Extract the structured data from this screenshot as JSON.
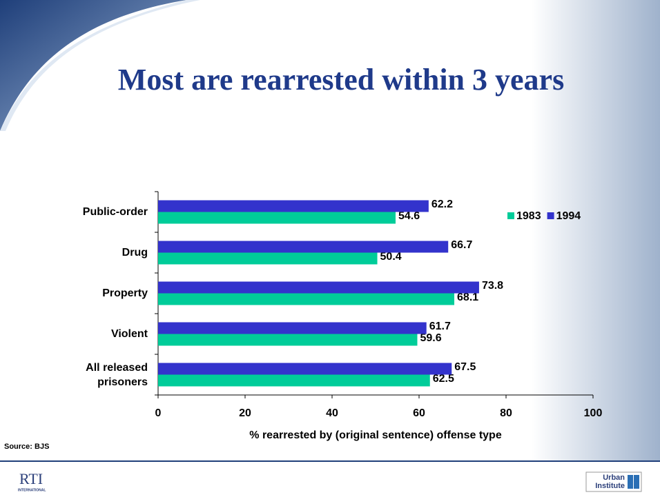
{
  "chart_data": {
    "type": "bar",
    "orientation": "horizontal",
    "title": "Most are rearrested within 3 years",
    "x_label": "% rearrested by (original sentence) offense type",
    "categories": [
      "Public-order",
      "Drug",
      "Property",
      "Violent",
      "All released prisoners"
    ],
    "series": [
      {
        "name": "1983",
        "color": "#00cc99",
        "values": [
          54.6,
          50.4,
          68.1,
          59.6,
          62.5
        ]
      },
      {
        "name": "1994",
        "color": "#3333cc",
        "values": [
          62.2,
          66.7,
          73.8,
          61.7,
          67.5
        ]
      }
    ],
    "xlim": [
      0,
      100
    ],
    "xticks": [
      0,
      20,
      40,
      60,
      80,
      100
    ],
    "legend": "top-right"
  },
  "footer": {
    "source": "Source:  BJS",
    "left_logo": "RTI",
    "left_logo_sub": "INTERNATIONAL",
    "right_logo_line1": "Urban",
    "right_logo_line2": "Institute"
  }
}
